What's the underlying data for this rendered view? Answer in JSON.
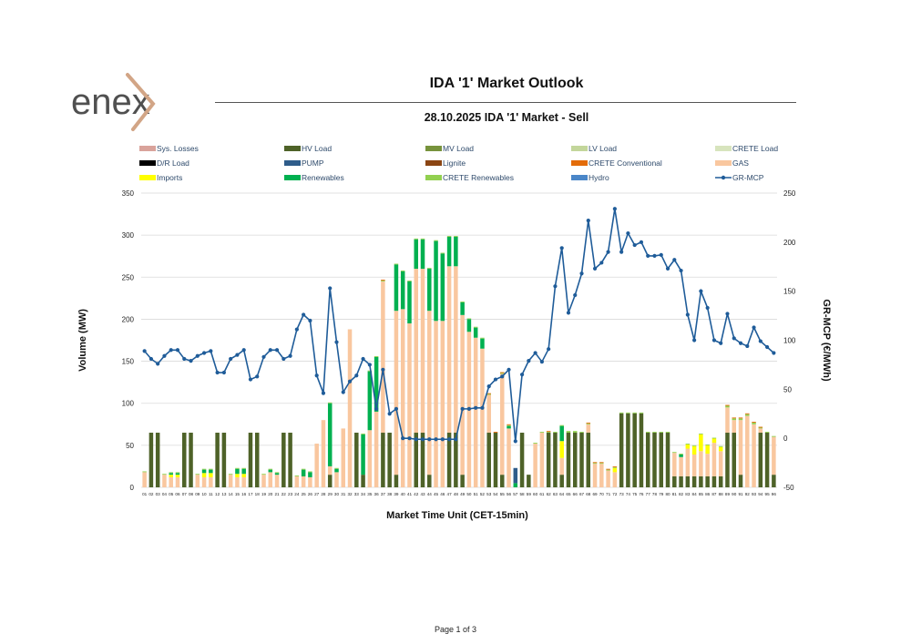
{
  "logo": {
    "text": "enex"
  },
  "header": {
    "title": "IDA '1' Market Outlook"
  },
  "footer": {
    "page": "Page 1 of 3"
  },
  "chart_data": {
    "type": "bar",
    "title": "28.10.2025  IDA '1' Market - Sell",
    "xlabel": "Market Time Unit (CET-15min)",
    "ylabel": "Volume (MW)",
    "y2label": "GR-MCP (€/MWh)",
    "ylim": [
      0,
      350
    ],
    "y2lim": [
      -50,
      250
    ],
    "yticks": [
      0,
      50,
      100,
      150,
      200,
      250,
      300,
      350
    ],
    "y2ticks": [
      -50,
      0,
      50,
      100,
      150,
      200,
      250
    ],
    "categories": [
      "01",
      "02",
      "03",
      "04",
      "05",
      "06",
      "07",
      "08",
      "09",
      "10",
      "11",
      "12",
      "13",
      "14",
      "15",
      "16",
      "17",
      "18",
      "19",
      "20",
      "21",
      "22",
      "23",
      "24",
      "25",
      "26",
      "27",
      "28",
      "29",
      "30",
      "31",
      "32",
      "33",
      "34",
      "35",
      "36",
      "37",
      "38",
      "39",
      "40",
      "41",
      "42",
      "43",
      "44",
      "45",
      "46",
      "47",
      "48",
      "49",
      "50",
      "51",
      "52",
      "53",
      "54",
      "55",
      "56",
      "57",
      "58",
      "59",
      "60",
      "61",
      "62",
      "63",
      "64",
      "65",
      "66",
      "67",
      "68",
      "69",
      "70",
      "71",
      "72",
      "73",
      "74",
      "75",
      "76",
      "77",
      "78",
      "79",
      "80",
      "81",
      "82",
      "83",
      "84",
      "85",
      "86",
      "87",
      "88",
      "89",
      "90",
      "91",
      "92",
      "93",
      "94",
      "95",
      "96"
    ],
    "legend": [
      {
        "name": "Sys. Losses",
        "color": "#d9a39b",
        "kind": "bar"
      },
      {
        "name": "HV Load",
        "color": "#4e6228",
        "kind": "bar"
      },
      {
        "name": "MV Load",
        "color": "#77933c",
        "kind": "bar"
      },
      {
        "name": "LV Load",
        "color": "#c3d69b",
        "kind": "bar"
      },
      {
        "name": "CRETE Load",
        "color": "#d7e4bd",
        "kind": "bar"
      },
      {
        "name": "D/R Load",
        "color": "#000000",
        "kind": "bar"
      },
      {
        "name": "PUMP",
        "color": "#2e5c8a",
        "kind": "bar"
      },
      {
        "name": "Lignite",
        "color": "#8b4513",
        "kind": "bar"
      },
      {
        "name": "CRETE Conventional",
        "color": "#e36c0a",
        "kind": "bar"
      },
      {
        "name": "GAS",
        "color": "#f9c79f",
        "kind": "bar"
      },
      {
        "name": "Imports",
        "color": "#ffff00",
        "kind": "bar"
      },
      {
        "name": "Renewables",
        "color": "#00b050",
        "kind": "bar"
      },
      {
        "name": "CRETE Renewables",
        "color": "#92d050",
        "kind": "bar"
      },
      {
        "name": "Hydro",
        "color": "#4a86c8",
        "kind": "bar"
      },
      {
        "name": "GR-MCP",
        "color": "#1f5c99",
        "kind": "line"
      }
    ],
    "series": [
      {
        "name": "HV Load",
        "color": "#4e6228",
        "values": [
          0,
          65,
          65,
          0,
          0,
          0,
          65,
          65,
          0,
          0,
          0,
          65,
          65,
          0,
          0,
          0,
          65,
          65,
          0,
          0,
          0,
          65,
          65,
          0,
          0,
          0,
          0,
          0,
          15,
          0,
          0,
          0,
          65,
          15,
          0,
          0,
          65,
          65,
          15,
          0,
          0,
          65,
          65,
          15,
          0,
          0,
          65,
          65,
          15,
          0,
          0,
          0,
          65,
          65,
          15,
          0,
          0,
          65,
          15,
          0,
          0,
          65,
          65,
          15,
          65,
          65,
          65,
          65,
          0,
          0,
          0,
          0,
          88,
          88,
          88,
          88,
          65,
          65,
          65,
          65,
          13,
          13,
          13,
          13,
          13,
          13,
          13,
          13,
          65,
          65,
          15,
          0,
          0,
          65,
          65,
          15
        ]
      },
      {
        "name": "GAS",
        "color": "#f9c79f",
        "values": [
          18,
          0,
          0,
          15,
          12,
          12,
          0,
          0,
          15,
          12,
          12,
          0,
          0,
          15,
          12,
          12,
          0,
          0,
          15,
          18,
          15,
          0,
          0,
          13,
          13,
          12,
          52,
          80,
          10,
          18,
          70,
          188,
          0,
          0,
          68,
          90,
          180,
          0,
          195,
          212,
          195,
          195,
          195,
          195,
          198,
          198,
          198,
          198,
          190,
          185,
          178,
          165,
          45,
          0,
          120,
          70,
          0,
          0,
          0,
          52,
          65,
          0,
          0,
          20,
          0,
          0,
          0,
          10,
          28,
          28,
          20,
          18,
          0,
          0,
          0,
          0,
          0,
          0,
          0,
          0,
          28,
          23,
          33,
          26,
          30,
          27,
          40,
          30,
          30,
          15,
          65,
          85,
          75,
          5,
          0,
          45
        ]
      },
      {
        "name": "Imports",
        "color": "#ffff00",
        "values": [
          0,
          0,
          0,
          0,
          3,
          3,
          0,
          0,
          0,
          5,
          5,
          0,
          0,
          0,
          4,
          4,
          0,
          0,
          0,
          0,
          0,
          0,
          0,
          0,
          0,
          0,
          0,
          0,
          0,
          0,
          0,
          0,
          0,
          0,
          0,
          0,
          0,
          0,
          0,
          0,
          0,
          0,
          0,
          0,
          0,
          0,
          0,
          0,
          0,
          0,
          0,
          0,
          0,
          0,
          0,
          0,
          0,
          0,
          0,
          0,
          0,
          0,
          0,
          20,
          0,
          0,
          0,
          0,
          0,
          0,
          0,
          5,
          0,
          0,
          0,
          0,
          0,
          0,
          0,
          0,
          0,
          0,
          5,
          10,
          20,
          10,
          5,
          5,
          0,
          0,
          0,
          0,
          0,
          0,
          0,
          0
        ]
      },
      {
        "name": "Renewables",
        "color": "#00b050",
        "values": [
          0,
          0,
          0,
          0,
          2,
          2,
          0,
          0,
          0,
          4,
          4,
          0,
          0,
          0,
          6,
          6,
          0,
          0,
          0,
          3,
          2,
          0,
          0,
          0,
          8,
          6,
          0,
          0,
          75,
          4,
          0,
          0,
          0,
          48,
          70,
          65,
          0,
          0,
          55,
          45,
          50,
          35,
          35,
          50,
          95,
          80,
          35,
          35,
          15,
          15,
          12,
          12,
          0,
          0,
          0,
          3,
          5,
          0,
          0,
          0,
          0,
          0,
          0,
          18,
          0,
          0,
          0,
          0,
          0,
          0,
          0,
          0,
          0,
          0,
          0,
          0,
          0,
          0,
          0,
          0,
          0,
          3,
          0,
          0,
          0,
          0,
          0,
          0,
          0,
          0,
          0,
          0,
          0,
          0,
          0,
          0
        ]
      },
      {
        "name": "CRETE Renewables",
        "color": "#92d050",
        "values": [
          1,
          0,
          0,
          1,
          1,
          1,
          0,
          0,
          1,
          1,
          1,
          0,
          0,
          1,
          1,
          1,
          0,
          0,
          1,
          1,
          1,
          0,
          0,
          1,
          1,
          1,
          0,
          0,
          1,
          1,
          0,
          0,
          0,
          1,
          1,
          1,
          1,
          0,
          1,
          1,
          1,
          1,
          1,
          1,
          1,
          1,
          1,
          1,
          1,
          1,
          1,
          1,
          1,
          0,
          1,
          1,
          0,
          0,
          0,
          1,
          1,
          1,
          1,
          1,
          2,
          2,
          1,
          1,
          1,
          1,
          1,
          1,
          1,
          1,
          1,
          1,
          1,
          1,
          1,
          1,
          1,
          1,
          1,
          1,
          1,
          1,
          1,
          1,
          2,
          2,
          2,
          2,
          2,
          1,
          1,
          1
        ]
      },
      {
        "name": "CRETE Conventional",
        "color": "#e36c0a",
        "values": [
          0,
          0,
          0,
          0,
          0,
          0,
          0,
          0,
          0,
          0,
          0,
          0,
          0,
          0,
          0,
          0,
          0,
          0,
          0,
          0,
          0,
          0,
          0,
          0,
          0,
          0,
          0,
          0,
          0,
          0,
          0,
          0,
          0,
          0,
          0,
          0,
          1,
          0,
          0,
          0,
          0,
          0,
          0,
          0,
          0,
          0,
          0,
          0,
          0,
          0,
          0,
          0,
          1,
          1,
          1,
          1,
          0,
          0,
          0,
          0,
          0,
          1,
          0,
          0,
          0,
          0,
          0,
          1,
          1,
          1,
          1,
          1,
          0,
          0,
          0,
          0,
          0,
          0,
          0,
          0,
          0,
          0,
          0,
          0,
          0,
          0,
          0,
          0,
          1,
          1,
          1,
          1,
          1,
          1,
          0,
          0
        ]
      },
      {
        "name": "PUMP",
        "color": "#2e5c8a",
        "values": [
          0,
          0,
          0,
          0,
          0,
          0,
          0,
          0,
          0,
          0,
          0,
          0,
          0,
          0,
          0,
          0,
          0,
          0,
          0,
          0,
          0,
          0,
          0,
          0,
          0,
          0,
          0,
          0,
          0,
          0,
          0,
          0,
          0,
          0,
          0,
          0,
          0,
          0,
          0,
          0,
          0,
          0,
          0,
          0,
          0,
          0,
          0,
          0,
          0,
          0,
          0,
          0,
          0,
          0,
          0,
          0,
          18,
          0,
          0,
          0,
          0,
          0,
          0,
          0,
          0,
          0,
          0,
          0,
          0,
          0,
          0,
          0,
          0,
          0,
          0,
          0,
          0,
          0,
          0,
          0,
          0,
          0,
          0,
          0,
          0,
          0,
          0,
          0,
          0,
          0,
          0,
          0,
          0,
          0,
          0,
          0
        ]
      }
    ],
    "line": {
      "name": "GR-MCP",
      "color": "#1f5c99",
      "values": [
        89,
        81,
        76,
        84,
        90,
        90,
        81,
        79,
        84,
        87,
        89,
        67,
        67,
        81,
        85,
        90,
        60,
        63,
        83,
        90,
        90,
        81,
        84,
        111,
        126,
        120,
        64,
        46,
        153,
        98,
        47,
        58,
        64,
        81,
        75,
        30,
        70,
        25,
        30,
        0,
        0,
        -1,
        -1,
        -1,
        -1,
        -1,
        -1,
        -1,
        30,
        30,
        31,
        31,
        53,
        60,
        63,
        70,
        -3,
        65,
        79,
        87,
        78,
        91,
        155,
        194,
        128,
        146,
        168,
        222,
        173,
        179,
        190,
        234,
        190,
        209,
        197,
        200,
        186,
        186,
        187,
        173,
        182,
        171,
        126,
        100,
        150,
        133,
        100,
        97,
        127,
        102,
        97,
        94,
        113,
        99,
        93,
        87
      ]
    }
  }
}
